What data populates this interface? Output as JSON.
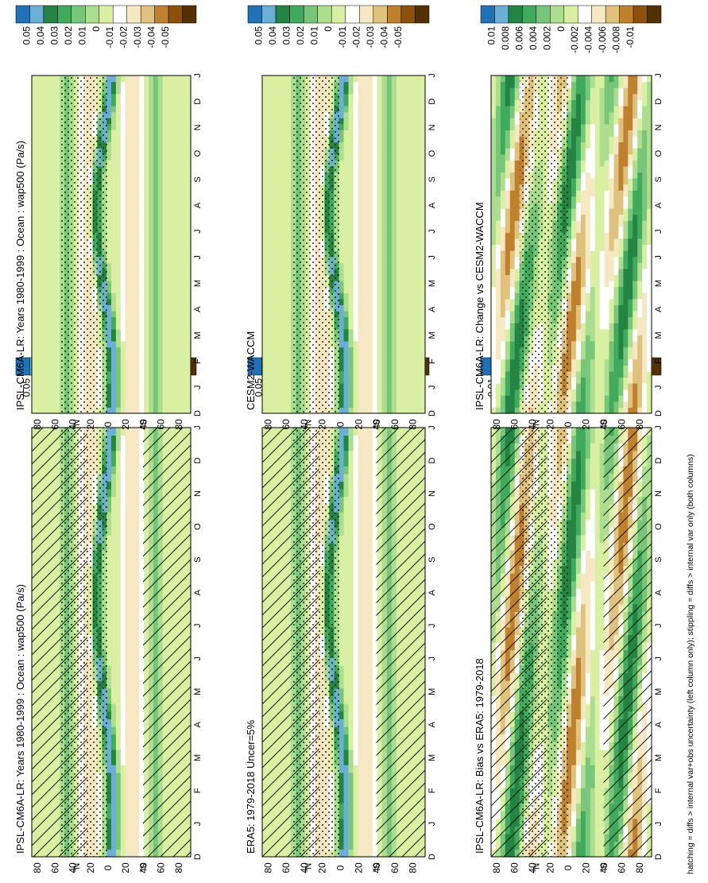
{
  "footnote": "hatching = diffs > internal var+obs uncertainty (left column only); stippling = diffs > internal var only (both columns)",
  "months": [
    "D",
    "J",
    "F",
    "M",
    "A",
    "M",
    "J",
    "J",
    "A",
    "S",
    "O",
    "N",
    "D",
    "J"
  ],
  "lat_ticks": [
    "80",
    "60",
    "40",
    "20",
    "0",
    "20",
    "40",
    "60",
    "80"
  ],
  "lat_unit_north": "°N",
  "lat_unit_south": "°S",
  "palette": {
    "brown_dark": "#543005",
    "brown": "#8c510a",
    "tan": "#bf812d",
    "sand": "#dfc27d",
    "cream": "#f6e8c3",
    "white": "#ffffff",
    "pale_green": "#d9f0a3",
    "light_green": "#addd8e",
    "green": "#78c679",
    "mid_green": "#41ab5d",
    "dark_green": "#238443",
    "light_blue": "#6baed6",
    "blue": "#2171b5"
  },
  "panels": [
    {
      "id": "model_clim",
      "title": "IPSL-CM6A-LR: Years 1980-1999 : Ocean : wap500 (Pa/s)",
      "colorbar": [
        "0.05",
        "0.04",
        "0.03",
        "0.02",
        "0.01",
        "0",
        "-0.01",
        "-0.02",
        "-0.03",
        "-0.04",
        "-0.05"
      ],
      "hatching": true,
      "stippling": true
    },
    {
      "id": "model_clim_right",
      "title": "IPSL-CM6A-LR: Years 1980-1999 : Ocean : wap500 (Pa/s)",
      "colorbar": [
        "0.05",
        "0.04",
        "0.03",
        "0.02",
        "0.01",
        "0",
        "-0.01",
        "-0.02",
        "-0.03",
        "-0.04",
        "-0.05"
      ],
      "hatching": false,
      "stippling": true
    },
    {
      "id": "obs_clim",
      "title": "ERA5: 1979-2018 Uncer=5%",
      "colorbar": [
        "0.05",
        "0.04",
        "0.03",
        "0.02",
        "0.01",
        "0",
        "-0.01",
        "-0.02",
        "-0.03",
        "-0.04",
        "-0.05"
      ],
      "hatching": true,
      "stippling": true
    },
    {
      "id": "ref_model_clim",
      "title": "CESM2-WACCM",
      "colorbar": [
        "0.05",
        "0.04",
        "0.03",
        "0.02",
        "0.01",
        "0",
        "-0.01",
        "-0.02",
        "-0.03",
        "-0.04",
        "-0.05"
      ],
      "hatching": false,
      "stippling": true
    },
    {
      "id": "bias",
      "title": "IPSL-CM6A-LR: Bias vs ERA5: 1979-2018",
      "colorbar": [
        "0.01",
        "0.008",
        "0.006",
        "0.004",
        "0.002",
        "0",
        "-0.002",
        "-0.004",
        "-0.006",
        "-0.008",
        "-0.01"
      ],
      "hatching": true,
      "stippling": true
    },
    {
      "id": "change",
      "title": "IPSL-CM6A-LR: Change vs CESM2-WACCM",
      "colorbar": [
        "0.01",
        "0.008",
        "0.006",
        "0.004",
        "0.002",
        "0",
        "-0.002",
        "-0.004",
        "-0.006",
        "-0.008",
        "-0.01"
      ],
      "hatching": false,
      "stippling": true
    }
  ],
  "chart_data": [
    {
      "type": "heatmap",
      "title": "IPSL-CM6A-LR: Years 1980-1999 : Ocean : wap500 (Pa/s)",
      "x": [
        "D",
        "J",
        "F",
        "M",
        "A",
        "M",
        "J",
        "J",
        "A",
        "S",
        "O",
        "N",
        "D",
        "J"
      ],
      "y": [
        "80",
        "60",
        "40",
        "20",
        "0",
        "20",
        "40",
        "60",
        "80"
      ],
      "colorbar_range": [
        -0.05,
        0.05
      ]
    },
    {
      "type": "heatmap",
      "title": "IPSL-CM6A-LR: Years 1980-1999 : Ocean : wap500 (Pa/s)",
      "x": [
        "D",
        "J",
        "F",
        "M",
        "A",
        "M",
        "J",
        "J",
        "A",
        "S",
        "O",
        "N",
        "D",
        "J"
      ],
      "y": [
        "80",
        "60",
        "40",
        "20",
        "0",
        "20",
        "40",
        "60",
        "80"
      ],
      "colorbar_range": [
        -0.05,
        0.05
      ]
    },
    {
      "type": "heatmap",
      "title": "ERA5: 1979-2018 Uncer=5%",
      "x": [
        "D",
        "J",
        "F",
        "M",
        "A",
        "M",
        "J",
        "J",
        "A",
        "S",
        "O",
        "N",
        "D",
        "J"
      ],
      "y": [
        "80",
        "60",
        "40",
        "20",
        "0",
        "20",
        "40",
        "60",
        "80"
      ],
      "colorbar_range": [
        -0.05,
        0.05
      ]
    },
    {
      "type": "heatmap",
      "title": "CESM2-WACCM",
      "x": [
        "D",
        "J",
        "F",
        "M",
        "A",
        "M",
        "J",
        "J",
        "A",
        "S",
        "O",
        "N",
        "D",
        "J"
      ],
      "y": [
        "80",
        "60",
        "40",
        "20",
        "0",
        "20",
        "40",
        "60",
        "80"
      ],
      "colorbar_range": [
        -0.05,
        0.05
      ]
    },
    {
      "type": "heatmap",
      "title": "IPSL-CM6A-LR: Bias vs ERA5: 1979-2018",
      "x": [
        "D",
        "J",
        "F",
        "M",
        "A",
        "M",
        "J",
        "J",
        "A",
        "S",
        "O",
        "N",
        "D",
        "J"
      ],
      "y": [
        "80",
        "60",
        "40",
        "20",
        "0",
        "20",
        "40",
        "60",
        "80"
      ],
      "colorbar_range": [
        -0.01,
        0.01
      ]
    },
    {
      "type": "heatmap",
      "title": "IPSL-CM6A-LR: Change vs CESM2-WACCM",
      "x": [
        "D",
        "J",
        "F",
        "M",
        "A",
        "M",
        "J",
        "J",
        "A",
        "S",
        "O",
        "N",
        "D",
        "J"
      ],
      "y": [
        "80",
        "60",
        "40",
        "20",
        "0",
        "20",
        "40",
        "60",
        "80"
      ],
      "colorbar_range": [
        -0.01,
        0.01
      ]
    }
  ]
}
